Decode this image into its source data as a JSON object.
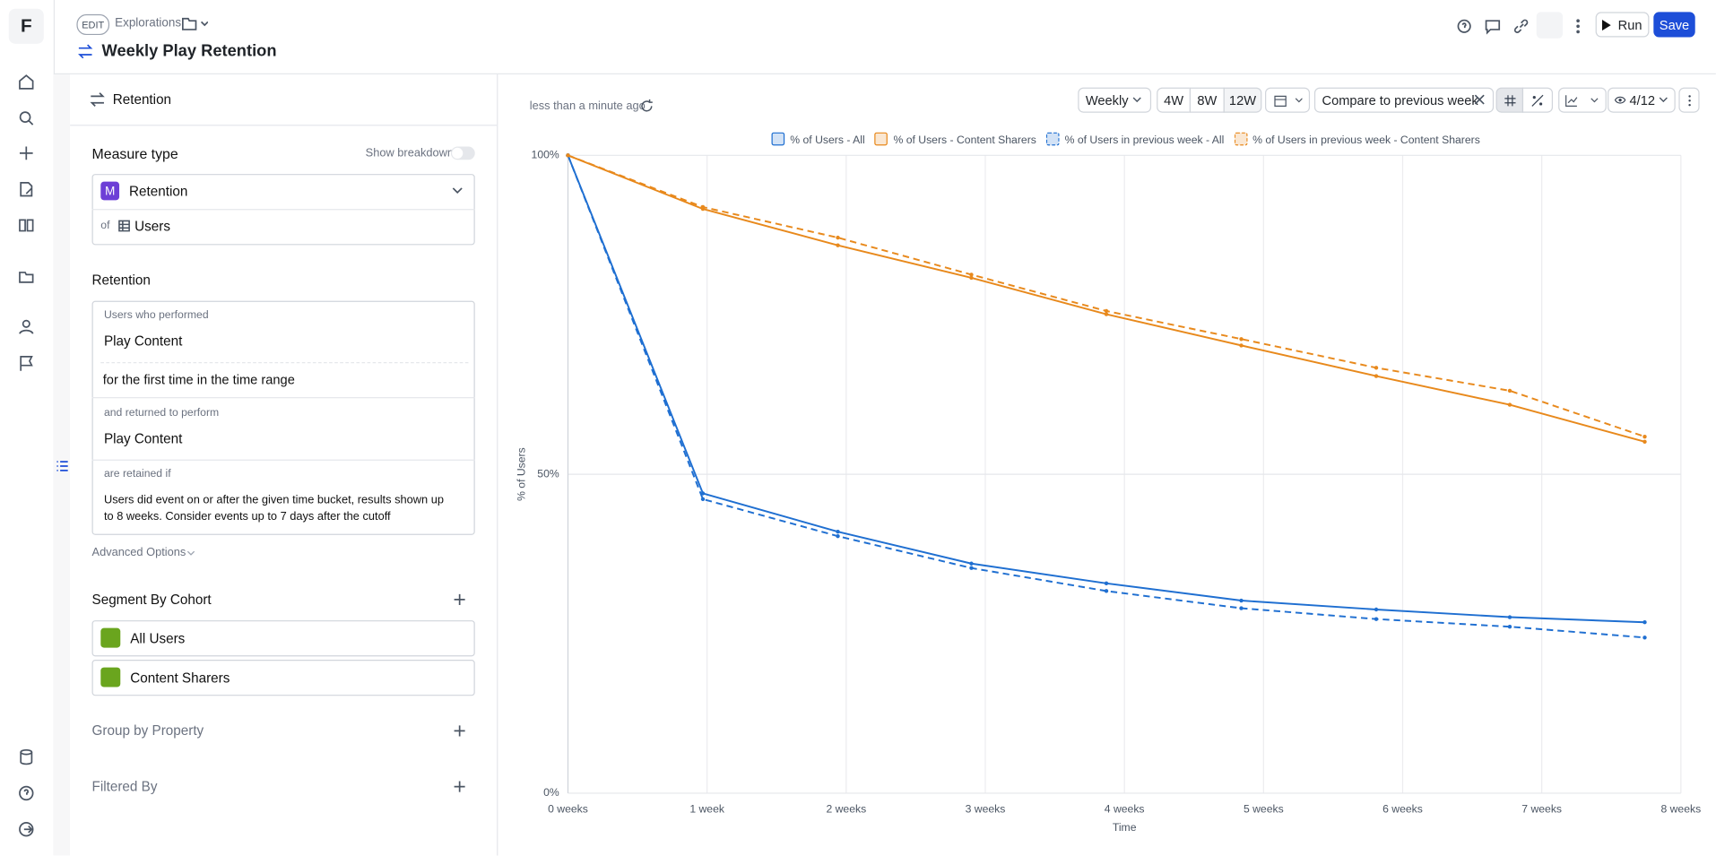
{
  "header": {
    "logo": "F",
    "edit_badge": "EDIT",
    "breadcrumb": "Explorations",
    "title": "Weekly Play Retention",
    "run": "Run",
    "save": "Save"
  },
  "toolbar": {
    "updated": "less than a minute ago",
    "granularity": "Weekly",
    "ranges": [
      "4W",
      "8W",
      "12W"
    ],
    "compare": "Compare to previous week",
    "view_count": "4/12"
  },
  "panel": {
    "tab": "Retention",
    "measure_type_label": "Measure type",
    "show_breakdown": "Show breakdown",
    "measure_icon": "M",
    "measure": "Retention",
    "of": "of",
    "entity": "Users",
    "retention_label": "Retention",
    "performed_label": "Users who performed",
    "event1": "Play Content",
    "first_time": "for the first time in the time range",
    "returned_label": "and returned to perform",
    "event2": "Play Content",
    "retained_label": "are retained if",
    "retained_text": "Users did event on or after the given time bucket, results shown up to 8 weeks. Consider events up to 7 days after the cutoff",
    "advanced": "Advanced Options",
    "segment_label": "Segment By Cohort",
    "cohorts": [
      "All Users",
      "Content Sharers"
    ],
    "group_by": "Group by Property",
    "filtered_by": "Filtered By"
  },
  "chart_data": {
    "type": "line",
    "y_label": "% of Users",
    "x_label": "Time",
    "x": [
      0,
      0.97,
      1.94,
      2.9,
      3.87,
      4.84,
      5.81,
      6.77,
      7.74
    ],
    "xlim": [
      0,
      8
    ],
    "xticks": [
      {
        "value": 0,
        "label": "0 weeks"
      },
      {
        "value": 1,
        "label": "1 week"
      },
      {
        "value": 2,
        "label": "2 weeks"
      },
      {
        "value": 3,
        "label": "3 weeks"
      },
      {
        "value": 4,
        "label": "4 weeks"
      },
      {
        "value": 5,
        "label": "5 weeks"
      },
      {
        "value": 6,
        "label": "6 weeks"
      },
      {
        "value": 7,
        "label": "7 weeks"
      },
      {
        "value": 8,
        "label": "8 weeks"
      }
    ],
    "ylim": [
      0,
      100
    ],
    "yticks": [
      {
        "value": 0,
        "label": "0%"
      },
      {
        "value": 50,
        "label": "50%"
      },
      {
        "value": 100,
        "label": "100%"
      }
    ],
    "grid": true,
    "series": [
      {
        "name": "% of Users - All",
        "color": "#1f6fd1",
        "dashed": false,
        "values": [
          100,
          47.0,
          41.0,
          36.0,
          32.9,
          30.2,
          28.8,
          27.6,
          26.8
        ]
      },
      {
        "name": "% of Users - Content Sharers",
        "color": "#e8891c",
        "dashed": false,
        "values": [
          100,
          91.6,
          85.9,
          80.8,
          75.1,
          70.2,
          65.4,
          60.9,
          55.1
        ]
      },
      {
        "name": "% of Users in previous week - All",
        "color": "#1f6fd1",
        "dashed": true,
        "values": [
          100,
          46.1,
          40.3,
          35.3,
          31.7,
          29.0,
          27.3,
          26.1,
          24.4
        ]
      },
      {
        "name": "% of Users in previous week - Content Sharers",
        "color": "#e8891c",
        "dashed": true,
        "values": [
          100,
          91.9,
          87.1,
          81.3,
          75.6,
          71.2,
          66.7,
          63.1,
          55.9
        ]
      }
    ]
  }
}
